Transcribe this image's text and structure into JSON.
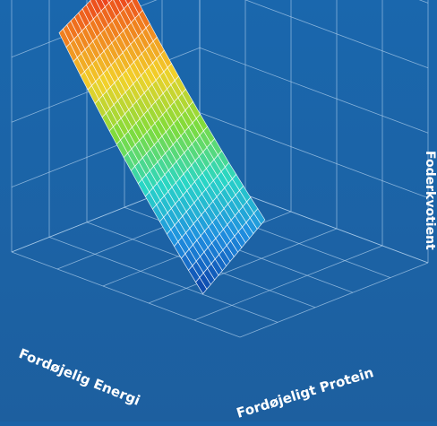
{
  "colors": {
    "background_top": "#1a67ad",
    "background_bottom": "#1d5f9f",
    "grid_line": "#a9cbe9",
    "surface_grid": "#ffffff",
    "label_text": "#ffffff",
    "colormap": [
      "#0b3fa6",
      "#1f8fe0",
      "#29d6c6",
      "#7fdc3a",
      "#f2d12a",
      "#f07a1e",
      "#e8161c"
    ]
  },
  "chart_data": {
    "type": "surface",
    "title": "",
    "xlabel": "Fordøjelig Energi",
    "ylabel": "Fordøjeligt Protein",
    "zlabel": "Foderkvotient",
    "tick_labels": false,
    "grid": true,
    "colormap": "rainbow (blue low, red high)",
    "shape": "Surface falling steeply as Fordøjelig Energi increases and mildly as Fordøjeligt Protein increases; highest at low energy / low protein, lowest at high energy / high protein.",
    "grid_resolution": [
      20,
      16
    ],
    "corner_values": {
      "low_energy_low_protein": 1.0,
      "low_energy_high_protein": 0.84,
      "high_energy_low_protein": 0.2,
      "high_energy_high_protein": 0.0
    }
  }
}
